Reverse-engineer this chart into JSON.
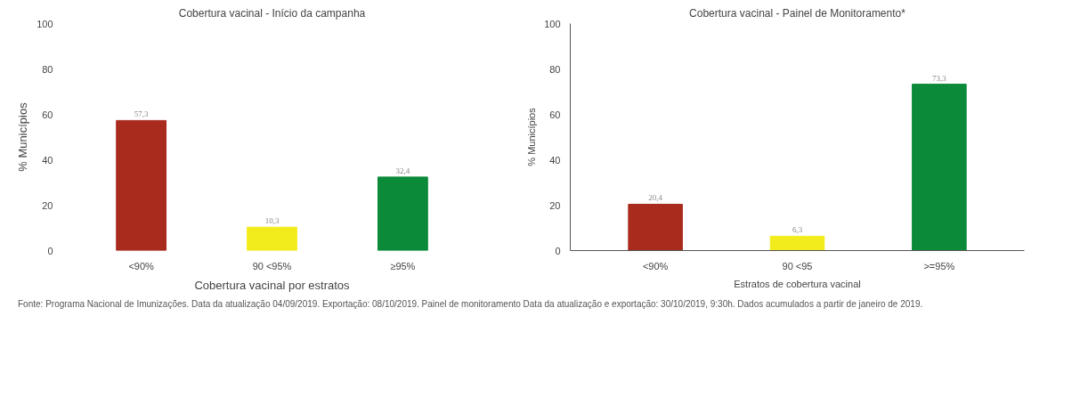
{
  "chart_data": [
    {
      "type": "bar",
      "title": "Cobertura vacinal - Início da campanha",
      "xlabel": "Cobertura vacinal por estratos",
      "ylabel": "% Municípios",
      "categories": [
        "<90%",
        "90 <95%",
        "≥95%"
      ],
      "values": [
        57.3,
        10.3,
        32.4
      ],
      "colors": [
        "#a82b1e",
        "#f2ec1c",
        "#0b8a3a"
      ],
      "value_labels": [
        "57,3",
        "10,3",
        "32,4"
      ],
      "ylim": [
        0,
        100
      ],
      "yticks": [
        0,
        20,
        40,
        60,
        80,
        100
      ],
      "grid": false,
      "annotations": [
        "Fonte: Programa Nacional de Imunizações. Data da atualização 04/09/2019. Exportação: 08/10/2019. Painel de monitoramento Data da atualização e exportação: 30/10/2019, 9:30h. Dados acumulados a partir de janeiro de 2019."
      ]
    },
    {
      "type": "bar",
      "title": "Cobertura vacinal - Painel de Monitoramento*",
      "xlabel": "Estratos de cobertura vacinal",
      "ylabel": "% Municípios",
      "categories": [
        "<90%",
        "90 <95",
        ">=95%"
      ],
      "values": [
        20.4,
        6.3,
        73.3
      ],
      "colors": [
        "#a82b1e",
        "#f2ec1c",
        "#0b8a3a"
      ],
      "value_labels": [
        "20,4",
        "6,3",
        "73,3"
      ],
      "ylim": [
        0,
        100
      ],
      "yticks": [
        0,
        20,
        40,
        60,
        80,
        100
      ],
      "grid": false
    }
  ]
}
